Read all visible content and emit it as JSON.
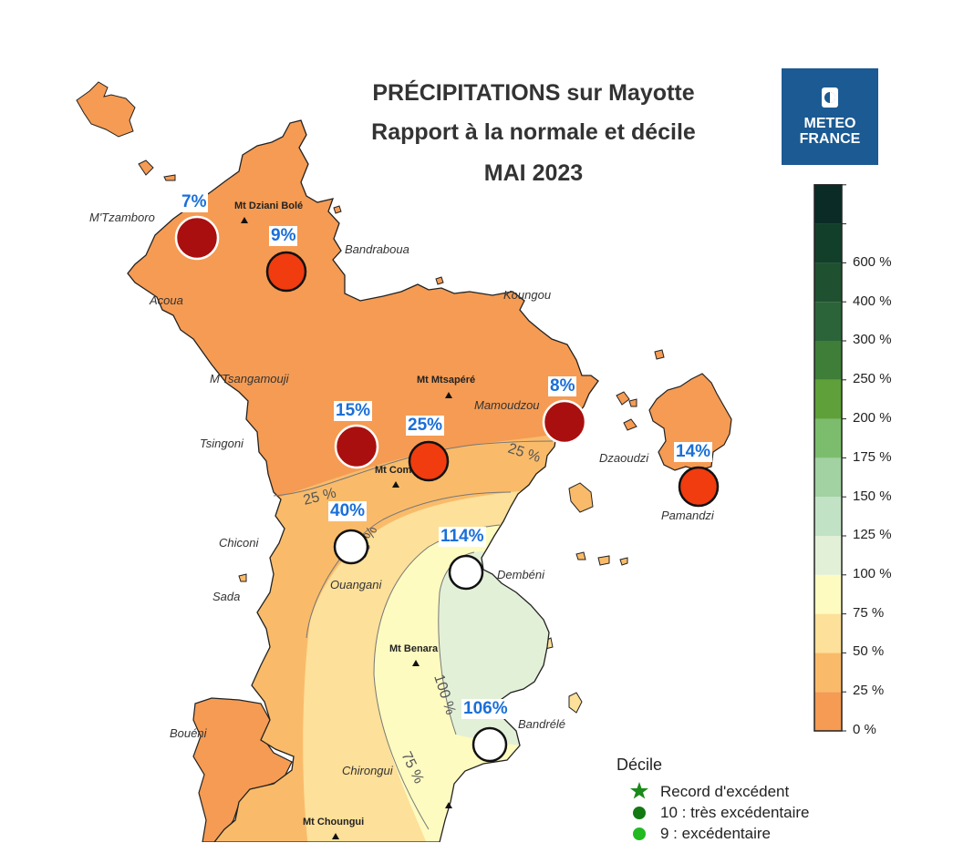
{
  "title": {
    "line1": "PRÉCIPITATIONS sur Mayotte",
    "line2": "Rapport à la normale et décile",
    "line3": "MAI 2023"
  },
  "logo": {
    "line1": "METEO",
    "line2": "FRANCE",
    "color": "#1b5a93",
    "icon": "meteo-france-logo-icon"
  },
  "colorbar": {
    "colors": [
      "#f59b53",
      "#f9bb6a",
      "#fde099",
      "#fefbc0",
      "#e2f0d7",
      "#c2e2c5",
      "#a2d1a2",
      "#7bbd6d",
      "#5fa03a",
      "#3f7e38",
      "#2c6439",
      "#1f5130",
      "#123f2a",
      "#0a2b26"
    ],
    "labels": [
      "0 %",
      "25 %",
      "50 %",
      "75 %",
      "100 %",
      "125 %",
      "150 %",
      "175 %",
      "200 %",
      "250 %",
      "300 %",
      "400 %",
      "600 %"
    ]
  },
  "contours": [
    {
      "label": "25 %"
    },
    {
      "label": "25 %"
    },
    {
      "label": "50 %"
    },
    {
      "label": "75 %"
    },
    {
      "label": "100 %"
    }
  ],
  "stations": [
    {
      "name": "M'Tzamboro",
      "value": "7%",
      "color": "#a90f0f"
    },
    {
      "name": "Mt Dziani Bolé",
      "value": "9%",
      "color": "#f03c0e"
    },
    {
      "name": "Tsingoni",
      "value": "15%",
      "color": "#a90f0f"
    },
    {
      "name": "Mt Combani",
      "value": "25%",
      "color": "#f03c0e"
    },
    {
      "name": "Mamoudzou",
      "value": "8%",
      "color": "#a90f0f"
    },
    {
      "name": "Pamandzi",
      "value": "14%",
      "color": "#f03c0e"
    },
    {
      "name": "Chiconi",
      "value": "40%",
      "color": "#ffffff"
    },
    {
      "name": "Dembéni",
      "value": "114%",
      "color": "#ffffff"
    },
    {
      "name": "Bandrélé",
      "value": "106%",
      "color": "#ffffff"
    }
  ],
  "places": {
    "mtzamboro": "M'Tzamboro",
    "acoua": "Acoua",
    "bandraboua": "Bandraboua",
    "koungou": "Koungou",
    "mtsangamouji": "M'Tsangamouji",
    "mamoudzou": "Mamoudzou",
    "tsingoni": "Tsingoni",
    "dzaoudzi": "Dzaoudzi",
    "pamandzi": "Pamandzi",
    "chiconi": "Chiconi",
    "ouangani": "Ouangani",
    "dembeni": "Dembéni",
    "sada": "Sada",
    "boueni": "Bouéni",
    "bandrele": "Bandrélé",
    "chirongui": "Chirongui"
  },
  "mountains": {
    "dziani": "Mt Dziani Bolé",
    "mtsapere": "Mt Mtsapéré",
    "combani": "Mt Com",
    "benara": "Mt Benara",
    "choungui": "Mt Choungui"
  },
  "decile_legend": {
    "title": "Décile",
    "items": [
      {
        "label": "Record d'excédent",
        "color": "#1a8a1a",
        "icon": "star-icon"
      },
      {
        "label": "10 : très excédentaire",
        "color": "#137a13",
        "icon": "dot-icon"
      },
      {
        "label": "9 : excédentaire",
        "color": "#22b922",
        "icon": "dot-icon"
      }
    ]
  }
}
